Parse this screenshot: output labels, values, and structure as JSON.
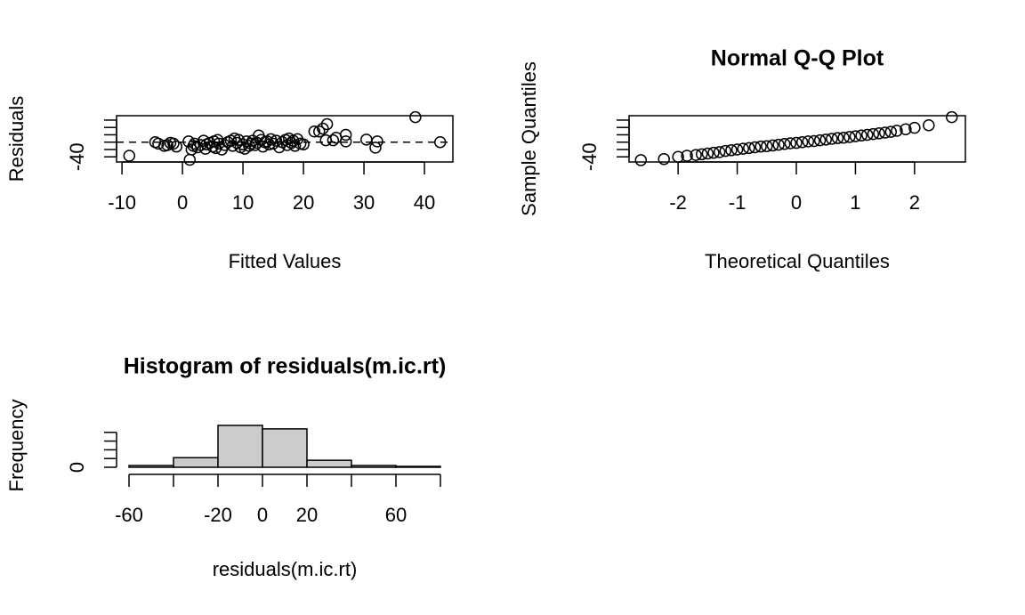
{
  "chart_data": [
    {
      "type": "scatter",
      "xlabel": "Fitted Values",
      "ylabel": "Residuals",
      "x": [
        -8.8,
        -4.5,
        -4,
        -3,
        -2.5,
        -2,
        -1.5,
        -1,
        1,
        1.2,
        1.5,
        1.8,
        2,
        2.5,
        3,
        3.5,
        3.8,
        4,
        4.5,
        5,
        5.2,
        5.5,
        5.8,
        6,
        6.5,
        7,
        7.5,
        8,
        8.3,
        8.6,
        9,
        9.3,
        9.6,
        10,
        10.3,
        10.6,
        11,
        11.3,
        11.6,
        12,
        12.3,
        12.6,
        13,
        13.3,
        13.6,
        14,
        14.3,
        14.6,
        15,
        15.5,
        16,
        16.5,
        17,
        17.3,
        17.6,
        18,
        18.3,
        18.6,
        19,
        19.5,
        20,
        21.8,
        22.6,
        23.2,
        23.7,
        23.9,
        24.9,
        25.4,
        27,
        27,
        30.4,
        31.9,
        32.2,
        38.5,
        42.6
      ],
      "y": [
        -37,
        0,
        -4,
        -10,
        -8,
        -2,
        -4,
        -12,
        2,
        -48,
        -20,
        -10,
        -4,
        -14,
        -8,
        4,
        -18,
        -6,
        -2,
        -12,
        2,
        -16,
        6,
        -4,
        -20,
        -8,
        0,
        4,
        -10,
        10,
        -2,
        6,
        -14,
        -6,
        -18,
        2,
        -10,
        -4,
        4,
        -8,
        -2,
        18,
        6,
        -12,
        0,
        2,
        -6,
        8,
        -4,
        4,
        -14,
        0,
        6,
        -8,
        10,
        -2,
        4,
        -10,
        8,
        -4,
        -6,
        29,
        29,
        37,
        5,
        49,
        5,
        12,
        20,
        2,
        7,
        -15,
        2,
        68,
        0
      ],
      "hline": 0,
      "xlim": [
        -10.9,
        44.7
      ],
      "ylim": [
        -54,
        72
      ],
      "xticks": [
        -10,
        0,
        10,
        20,
        30,
        40
      ],
      "yticks": [
        -40,
        -20,
        0,
        20,
        40,
        60
      ],
      "labeled_yticks": [
        -40
      ]
    },
    {
      "type": "scatter",
      "title": "Normal Q-Q Plot",
      "xlabel": "Theoretical Quantiles",
      "ylabel": "Sample Quantiles",
      "x": [
        -2.63,
        -2.24,
        -2.0,
        -1.85,
        -1.7,
        -1.6,
        -1.5,
        -1.4,
        -1.3,
        -1.2,
        -1.1,
        -1.0,
        -0.9,
        -0.8,
        -0.7,
        -0.6,
        -0.5,
        -0.4,
        -0.3,
        -0.2,
        -0.1,
        0,
        0.1,
        0.2,
        0.3,
        0.4,
        0.5,
        0.6,
        0.7,
        0.8,
        0.9,
        1.0,
        1.1,
        1.2,
        1.3,
        1.4,
        1.5,
        1.6,
        1.7,
        1.85,
        2.0,
        2.24,
        2.63
      ],
      "y": [
        -49,
        -46,
        -40,
        -37,
        -35,
        -33,
        -31,
        -29,
        -27,
        -24,
        -22,
        -20,
        -18,
        -16,
        -14,
        -12,
        -11,
        -9,
        -7,
        -5,
        -3,
        -2,
        0,
        2,
        3,
        5,
        7,
        9,
        11,
        12,
        14,
        16,
        18,
        20,
        22,
        24,
        26,
        28,
        31,
        35,
        39,
        46,
        68
      ],
      "xlim": [
        -2.83,
        2.86
      ],
      "ylim": [
        -54,
        72
      ],
      "xticks": [
        -2,
        -1,
        0,
        1,
        2
      ],
      "yticks": [
        -40,
        -20,
        0,
        20,
        40,
        60
      ],
      "labeled_yticks": [
        -40
      ]
    },
    {
      "type": "histogram",
      "title": "Histogram of residuals(m.ic.rt)",
      "xlabel": "residuals(m.ic.rt)",
      "ylabel": "Frequency",
      "bins": [
        -60,
        -40,
        -20,
        0,
        20,
        40,
        60,
        80
      ],
      "counts": [
        4,
        22,
        96,
        88,
        16,
        4,
        2
      ],
      "color": "#cccccc",
      "xlim": [
        -60,
        80
      ],
      "ylim": [
        0,
        100
      ],
      "xticks": [
        -60,
        -40,
        -20,
        0,
        20,
        40,
        60,
        80
      ],
      "labeled_xticks": [
        -60,
        -20,
        0,
        20,
        60
      ],
      "yticks": [
        0,
        20,
        40,
        60,
        80
      ],
      "labeled_yticks": [
        0
      ]
    }
  ]
}
